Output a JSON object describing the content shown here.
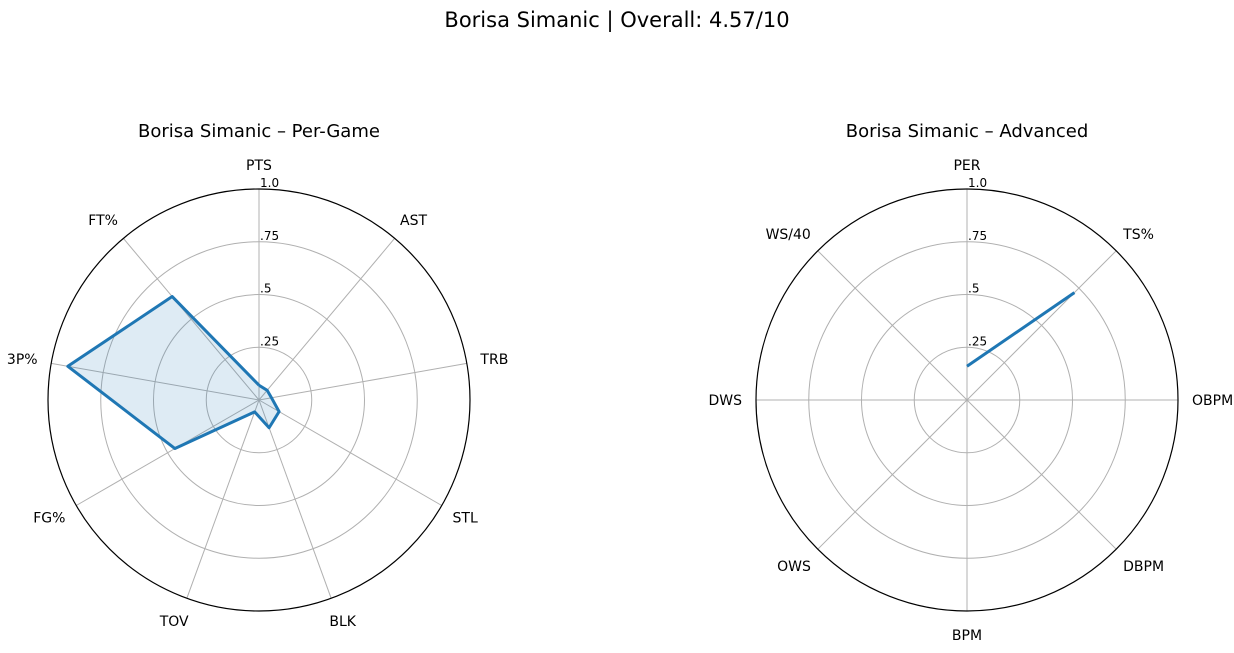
{
  "figure": {
    "title": "Borisa Simanic | Overall: 4.57/10"
  },
  "chart_data": [
    {
      "type": "radar",
      "title": "Borisa Simanic – Per-Game",
      "axes": [
        "PTS",
        "AST",
        "TRB",
        "STL",
        "BLK",
        "TOV",
        "FG%",
        "3P%",
        "FT%"
      ],
      "rlim": [
        0,
        1.0
      ],
      "radial_ticks": [
        ".25",
        ".5",
        ".75",
        "1.0"
      ],
      "grid": true,
      "series": [
        {
          "values": [
            0.07,
            0.06,
            0.06,
            0.11,
            0.14,
            0.06,
            0.46,
            0.92,
            0.64
          ],
          "color": "#1f77b4",
          "fill": true
        }
      ]
    },
    {
      "type": "radar",
      "title": "Borisa Simanic – Advanced",
      "axes": [
        "PER",
        "TS%",
        "OBPM",
        "DBPM",
        "BPM",
        "OWS",
        "DWS",
        "WS/40"
      ],
      "rlim": [
        0,
        1.0
      ],
      "radial_ticks": [
        ".25",
        ".5",
        ".75",
        "1.0"
      ],
      "grid": true,
      "series": [
        {
          "values": [
            0.16,
            0.72,
            null,
            null,
            null,
            null,
            null,
            null
          ],
          "color": "#1f77b4",
          "fill": false
        }
      ]
    }
  ]
}
